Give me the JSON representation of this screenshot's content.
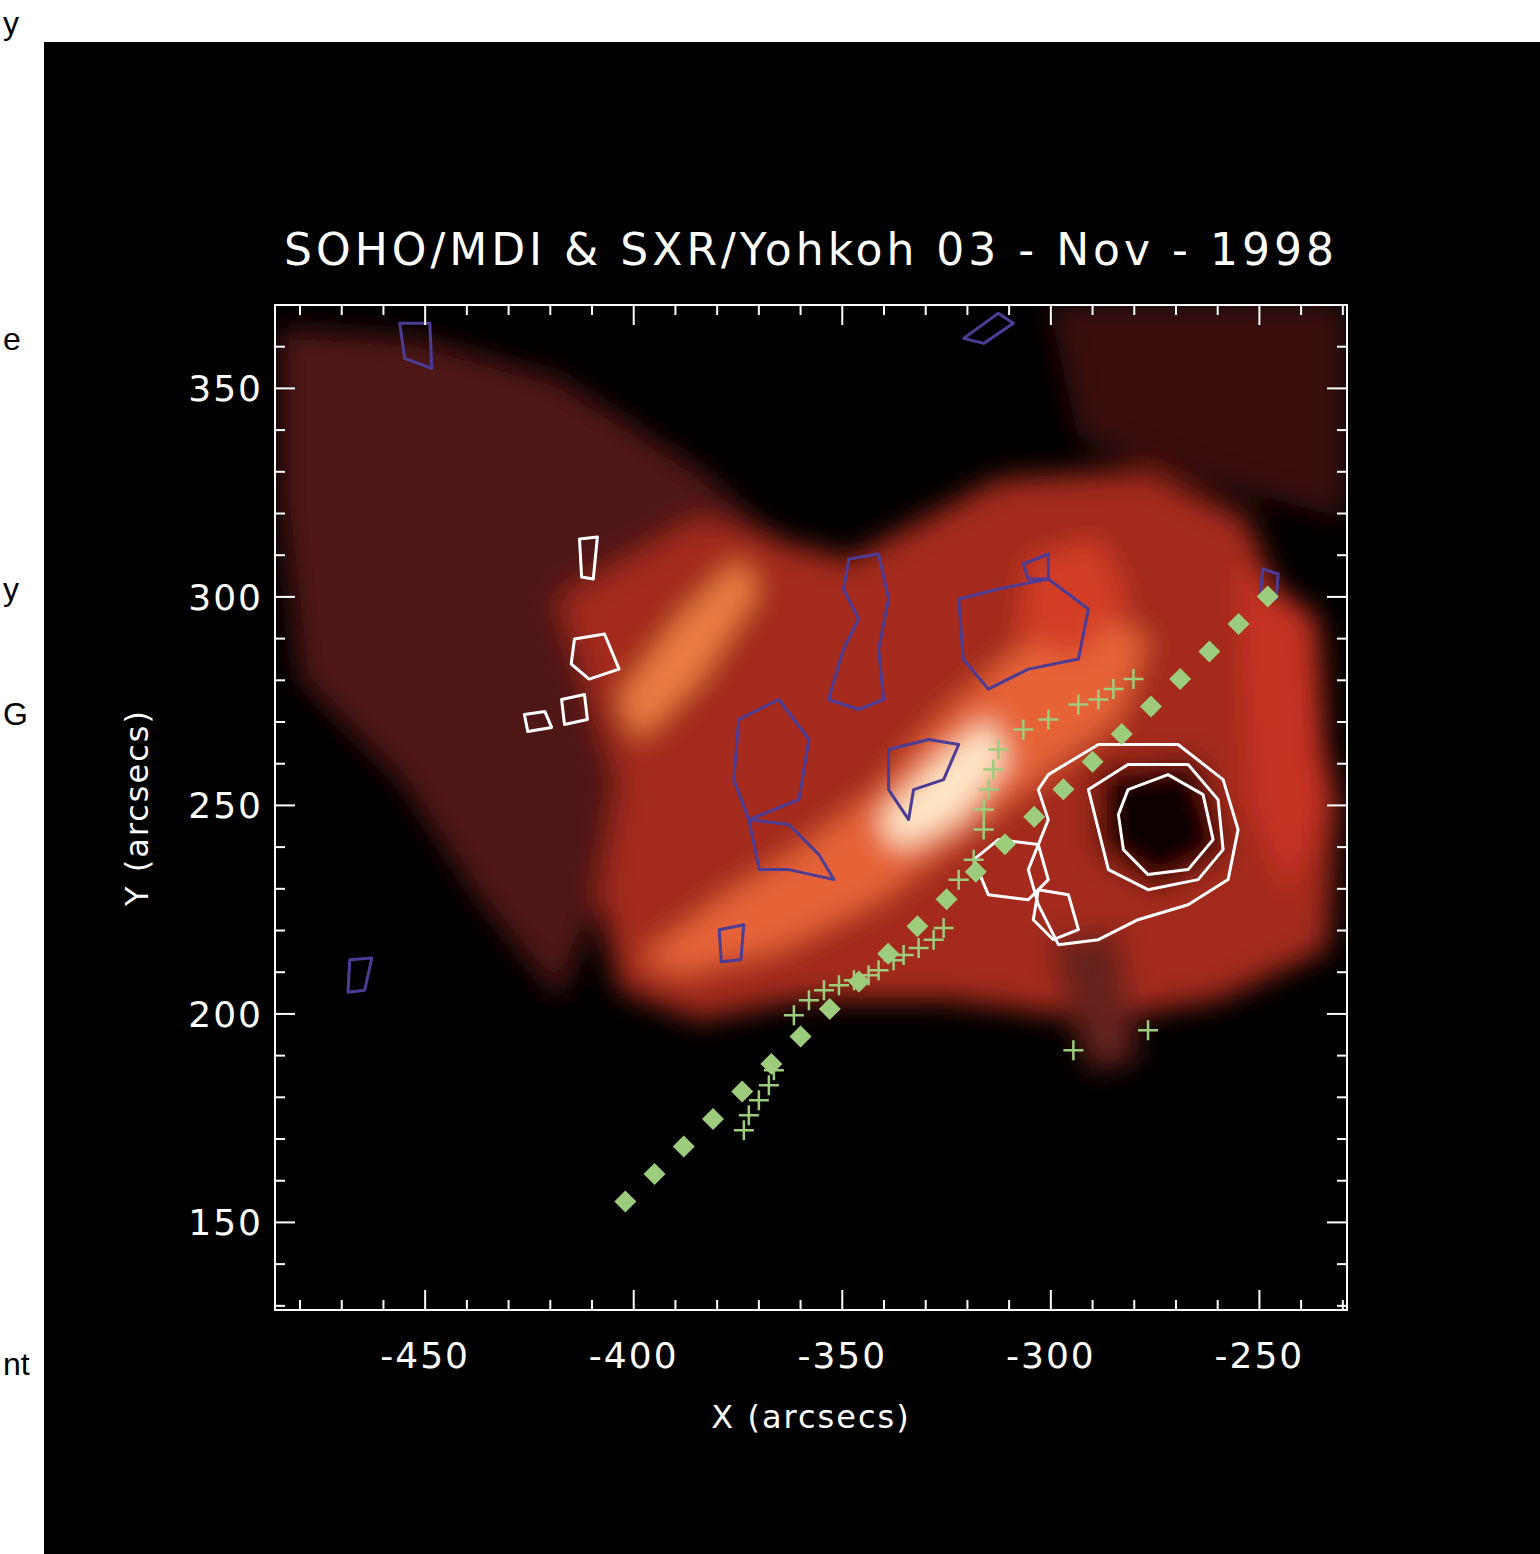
{
  "chart_data": {
    "type": "image",
    "title": "SOHO/MDI & SXR/Yohkoh 03 - Nov - 1998",
    "x_label": "X (arcsecs)",
    "y_label": "Y (arcsecs)",
    "xlim": [
      -486,
      -229
    ],
    "ylim": [
      129,
      370
    ],
    "xticks": [
      -450,
      -400,
      -350,
      -300,
      -250
    ],
    "yticks": [
      150,
      200,
      250,
      300,
      350
    ],
    "image": {
      "blobs": [
        {
          "level": 0.25,
          "points": [
            [
              -484.8,
              364.4
            ],
            [
              -451.3,
              362
            ],
            [
              -417.8,
              352.4
            ],
            [
              -384.3,
              330.7
            ],
            [
              -360.4,
              309.1
            ],
            [
              -370,
              275.4
            ],
            [
              -384.3,
              261
            ],
            [
              -408.2,
              227.4
            ],
            [
              -417.8,
              203.3
            ],
            [
              -437,
              227.4
            ],
            [
              -456.1,
              256.2
            ],
            [
              -480,
              280.3
            ],
            [
              -484.8,
              323.5
            ]
          ]
        },
        {
          "level": 0.2,
          "points": [
            [
              -300.6,
              370.4
            ],
            [
              -229.5,
              370.4
            ],
            [
              -229.5,
              318.7
            ],
            [
              -264.7,
              328.3
            ],
            [
              -293.4,
              338
            ]
          ]
        },
        {
          "level": 0.45,
          "points": [
            [
              -417.8,
              299.5
            ],
            [
              -384.3,
              318.7
            ],
            [
              -348.4,
              309.1
            ],
            [
              -312.6,
              328.3
            ],
            [
              -276.7,
              330.7
            ],
            [
              -252.8,
              318.7
            ],
            [
              -240.8,
              287.5
            ],
            [
              -231.2,
              251.4
            ],
            [
              -233.6,
              215.4
            ],
            [
              -259.9,
              203.3
            ],
            [
              -288.6,
              198.5
            ],
            [
              -324.5,
              203.3
            ],
            [
              -360.4,
              203.3
            ],
            [
              -384.3,
              198.5
            ],
            [
              -403.5,
              205.7
            ],
            [
              -408.2,
              227.4
            ],
            [
              -403.5,
              256.2
            ]
          ]
        },
        {
          "level": 0.55,
          "points": [
            [
              -255.1,
              309.1
            ],
            [
              -236,
              294.7
            ],
            [
              -233.6,
              251.4
            ],
            [
              -243.2,
              227.4
            ],
            [
              -252.8,
              251.4
            ]
          ]
        },
        {
          "level": 0.3,
          "points": [
            [
              -300.6,
              217.8
            ],
            [
              -283.8,
              220.2
            ],
            [
              -279.1,
              188.9
            ],
            [
              -291,
              186.5
            ]
          ]
        },
        {
          "level": 0.7,
          "points": [
            [
              -398.7,
              213
            ],
            [
              -379.5,
              227.4
            ],
            [
              -360.4,
              239.4
            ],
            [
              -341.3,
              253.8
            ],
            [
              -326.9,
              270.6
            ],
            [
              -307.8,
              287.5
            ],
            [
              -288.6,
              297.1
            ],
            [
              -276.7,
              289.9
            ],
            [
              -283.8,
              270.6
            ],
            [
              -303,
              256.2
            ],
            [
              -322.1,
              241.8
            ],
            [
              -341.3,
              227.4
            ],
            [
              -365.2,
              215.4
            ],
            [
              -389.1,
              209.4
            ]
          ]
        },
        {
          "level": 0.6,
          "points": [
            [
              -305.4,
              309.1
            ],
            [
              -288.6,
              313.9
            ],
            [
              -281.5,
              299.5
            ],
            [
              -293.4,
              285.1
            ],
            [
              -307.8,
              289.9
            ]
          ]
        },
        {
          "level": 0.75,
          "points": [
            [
              -403.5,
              275.4
            ],
            [
              -389.1,
              294.7
            ],
            [
              -374.8,
              309.1
            ],
            [
              -370,
              301.9
            ],
            [
              -384.3,
              280.3
            ],
            [
              -398.7,
              265.8
            ]
          ]
        },
        {
          "level": 0.95,
          "points": [
            [
              -341.3,
              246.6
            ],
            [
              -326.9,
              261
            ],
            [
              -314.9,
              270.6
            ],
            [
              -310.2,
              261
            ],
            [
              -322.1,
              246.6
            ],
            [
              -336.5,
              239.4
            ]
          ]
        },
        {
          "level": 0.05,
          "points": [
            [
              -288.6,
              258.6
            ],
            [
              -264.7,
              261
            ],
            [
              -257.5,
              239.4
            ],
            [
              -274.3,
              229.8
            ],
            [
              -288.6,
              239.4
            ]
          ]
        }
      ]
    },
    "contours": [
      {
        "color": "#ffffff",
        "paths": [
          [
            [
              -300.6,
              257.4
            ],
            [
              -288.6,
              264.6
            ],
            [
              -269.5,
              264.6
            ],
            [
              -258.7,
              256.2
            ],
            [
              -255.1,
              244.2
            ],
            [
              -257.5,
              232.2
            ],
            [
              -267.1,
              226.2
            ],
            [
              -279.1,
              222.6
            ],
            [
              -288.6,
              217.8
            ],
            [
              -298.2,
              216.6
            ],
            [
              -303,
              226.2
            ],
            [
              -305.4,
              234.6
            ],
            [
              -300.6,
              246.6
            ],
            [
              -303,
              253.8
            ]
          ],
          [
            [
              -291,
              253.8
            ],
            [
              -281.5,
              259.8
            ],
            [
              -267.1,
              259.8
            ],
            [
              -259.9,
              251.4
            ],
            [
              -258.7,
              239.4
            ],
            [
              -264.7,
              232.2
            ],
            [
              -276.7,
              229.8
            ],
            [
              -286.2,
              234.6
            ],
            [
              -288.6,
              244.2
            ]
          ],
          [
            [
              -281.5,
              253.8
            ],
            [
              -271.9,
              257.4
            ],
            [
              -263.5,
              252.6
            ],
            [
              -261.1,
              241.8
            ],
            [
              -267.1,
              234.6
            ],
            [
              -276.7,
              233.4
            ],
            [
              -282.6,
              239.4
            ],
            [
              -283.8,
              247.8
            ]
          ],
          [
            [
              -318.5,
              237
            ],
            [
              -312.6,
              241.8
            ],
            [
              -303,
              240.6
            ],
            [
              -300.6,
              232.2
            ],
            [
              -305.4,
              227.4
            ],
            [
              -315,
              228.6
            ]
          ],
          [
            [
              -303,
              229.8
            ],
            [
              -295.8,
              228.6
            ],
            [
              -293.4,
              220.2
            ],
            [
              -299.4,
              217.8
            ],
            [
              -304.2,
              222.6
            ]
          ],
          [
            [
              -414.2,
              289.9
            ],
            [
              -407,
              291.1
            ],
            [
              -403.5,
              282.7
            ],
            [
              -410.7,
              280.3
            ],
            [
              -415,
              283.9
            ]
          ],
          [
            [
              -426.2,
              271.8
            ],
            [
              -421.3,
              272.5
            ],
            [
              -419.7,
              268.7
            ],
            [
              -425.4,
              267.7
            ]
          ],
          [
            [
              -417.3,
              275.4
            ],
            [
              -411.8,
              276.6
            ],
            [
              -411.1,
              270.6
            ],
            [
              -416.6,
              269.4
            ]
          ],
          [
            [
              -413,
              313.9
            ],
            [
              -408.7,
              314.4
            ],
            [
              -409.7,
              304.3
            ],
            [
              -412.5,
              304.8
            ]
          ]
        ]
      },
      {
        "color": "#4b3c96",
        "paths": [
          [
            [
              -322.1,
              299.5
            ],
            [
              -312.6,
              301.9
            ],
            [
              -300.6,
              304.3
            ],
            [
              -291,
              297.1
            ],
            [
              -293.4,
              285.1
            ],
            [
              -305.4,
              282.7
            ],
            [
              -315,
              277.9
            ],
            [
              -321,
              285.1
            ]
          ],
          [
            [
              -348.4,
              309.1
            ],
            [
              -341.3,
              310.3
            ],
            [
              -338.9,
              299.5
            ],
            [
              -341.3,
              287.5
            ],
            [
              -340.1,
              275.4
            ],
            [
              -346.1,
              273
            ],
            [
              -353.3,
              275.4
            ],
            [
              -349.7,
              287.5
            ],
            [
              -346.1,
              294.7
            ],
            [
              -349.7,
              301.9
            ]
          ],
          [
            [
              -374.8,
              270.6
            ],
            [
              -365.2,
              275.4
            ],
            [
              -358,
              265.8
            ],
            [
              -360.4,
              251.4
            ],
            [
              -372.4,
              246.6
            ],
            [
              -376,
              256.2
            ]
          ],
          [
            [
              -338.9,
              263.4
            ],
            [
              -329.3,
              265.8
            ],
            [
              -322.1,
              264.6
            ],
            [
              -325.7,
              256.2
            ],
            [
              -332.9,
              253.8
            ],
            [
              -334.1,
              246.6
            ],
            [
              -338.9,
              253.8
            ]
          ],
          [
            [
              -372.4,
              246.6
            ],
            [
              -362.8,
              245.4
            ],
            [
              -355.6,
              238.2
            ],
            [
              -352,
              232.2
            ],
            [
              -362.8,
              234.6
            ],
            [
              -369.9,
              234.6
            ]
          ],
          [
            [
              -379.5,
              220.2
            ],
            [
              -373.6,
              221.4
            ],
            [
              -374.3,
              213
            ],
            [
              -379,
              212.5
            ]
          ],
          [
            [
              -456.1,
              365.6
            ],
            [
              -448.9,
              365.6
            ],
            [
              -448.4,
              354.8
            ],
            [
              -454.9,
              357.2
            ]
          ],
          [
            [
              -320.9,
              362
            ],
            [
              -312.6,
              368
            ],
            [
              -309,
              365.6
            ],
            [
              -316.1,
              360.8
            ]
          ],
          [
            [
              -468.1,
              213
            ],
            [
              -462.8,
              213.4
            ],
            [
              -464.5,
              205.7
            ],
            [
              -468.5,
              205.2
            ]
          ],
          [
            [
              -306.6,
              307.9
            ],
            [
              -300.6,
              310.3
            ],
            [
              -300.6,
              304.3
            ],
            [
              -305.4,
              304.3
            ]
          ],
          [
            [
              -249.2,
              306.7
            ],
            [
              -245.5,
              305.5
            ],
            [
              -246,
              299.5
            ],
            [
              -249.8,
              300
            ]
          ]
        ]
      }
    ],
    "series": [
      {
        "type": "scatter",
        "marker": "diamond",
        "color": "#9ccc7c",
        "x": [
          -402,
          -395,
          -388,
          -381,
          -374,
          -367,
          -360,
          -353,
          -346,
          -339,
          -332,
          -325,
          -318,
          -311,
          -304,
          -297,
          -290,
          -283,
          -276,
          -269,
          -262,
          -255,
          -248
        ],
        "values": [
          155,
          161.6,
          168.2,
          174.8,
          181.4,
          188,
          194.6,
          201.2,
          207.8,
          214.4,
          221,
          227.5,
          234.1,
          240.7,
          247.3,
          253.9,
          260.5,
          267.1,
          273.7,
          280.3,
          286.9,
          293.5,
          300.1
        ]
      },
      {
        "type": "scatter",
        "marker": "plus",
        "color": "#9ccc7c",
        "x": [
          -373.6,
          -372.4,
          -370,
          -367.6,
          -366.4,
          -361.6,
          -358,
          -354.4,
          -350.8,
          -347.2,
          -343.7,
          -341.3,
          -337.7,
          -335.3,
          -331.7,
          -328.1,
          -325.7,
          -322.1,
          -318.5,
          -316.1,
          -316.1,
          -314.9,
          -313.8,
          -312.6,
          -306.6,
          -300.6,
          -293.4,
          -288.6,
          -285,
          -280.2,
          -294.6,
          -276.7
        ],
        "values": [
          172.1,
          175.7,
          179.3,
          182.9,
          186.5,
          199.7,
          203.3,
          205.7,
          206.9,
          208.1,
          209.3,
          210.5,
          212.9,
          214.1,
          215.8,
          217.8,
          220.6,
          232.2,
          237,
          244.2,
          249,
          253.8,
          258.6,
          263.4,
          268.2,
          270.6,
          274.2,
          275.4,
          277.9,
          280.3,
          191.3,
          196.1
        ]
      }
    ]
  },
  "slide_fragments": [
    "y",
    "e",
    "y",
    "G",
    "nt"
  ]
}
